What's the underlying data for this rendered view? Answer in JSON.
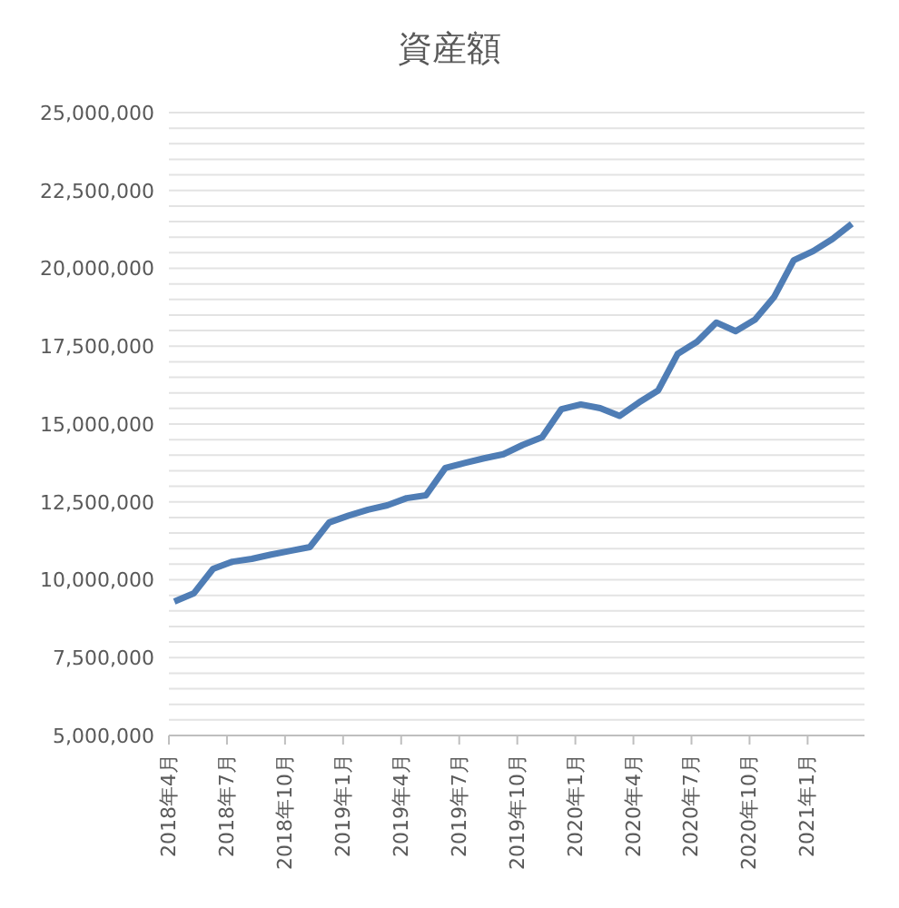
{
  "chart_data": {
    "type": "line",
    "title": "資産額",
    "categories": [
      "2018年4月",
      null,
      null,
      "2018年7月",
      null,
      null,
      "2018年10月",
      null,
      null,
      "2019年1月",
      null,
      null,
      "2019年4月",
      null,
      null,
      "2019年7月",
      null,
      null,
      "2019年10月",
      null,
      null,
      "2020年1月",
      null,
      null,
      "2020年4月",
      null,
      null,
      "2020年7月",
      null,
      null,
      "2020年10月",
      null,
      null,
      "2021年1月",
      null,
      null
    ],
    "series": [
      {
        "color": "#4f7db5",
        "values": [
          9300000,
          9560000,
          10350000,
          10580000,
          10670000,
          10810000,
          10930000,
          11050000,
          11840000,
          12060000,
          12250000,
          12390000,
          12620000,
          12710000,
          13590000,
          13750000,
          13900000,
          14030000,
          14330000,
          14580000,
          15480000,
          15630000,
          15510000,
          15260000,
          15690000,
          16080000,
          17250000,
          17640000,
          18260000,
          17980000,
          18350000,
          19090000,
          20260000,
          20550000,
          20940000,
          21430000
        ]
      }
    ],
    "ylim": [
      5000000,
      25000000
    ],
    "yticks": [
      {
        "value": 5000000,
        "label": "5,000,000"
      },
      {
        "value": 7500000,
        "label": "7,500,000"
      },
      {
        "value": 10000000,
        "label": "10,000,000"
      },
      {
        "value": 12500000,
        "label": "12,500,000"
      },
      {
        "value": 15000000,
        "label": "15,000,000"
      },
      {
        "value": 17500000,
        "label": "17,500,000"
      },
      {
        "value": 20000000,
        "label": "20,000,000"
      },
      {
        "value": 22500000,
        "label": "22,500,000"
      },
      {
        "value": 25000000,
        "label": "25,000,000"
      }
    ],
    "grid": "y",
    "marker": "none",
    "line_style": "solid"
  }
}
